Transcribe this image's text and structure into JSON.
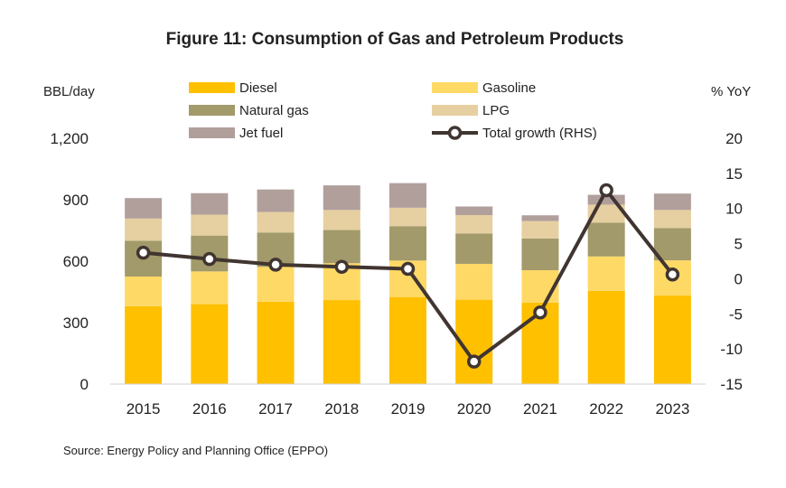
{
  "chart_data": {
    "type": "bar",
    "stacked": true,
    "title": "Figure 11:  Consumption of Gas and Petroleum Products",
    "ylabel_left": "BBL/day",
    "ylabel_right": "% YoY",
    "categories": [
      "2015",
      "2016",
      "2017",
      "2018",
      "2019",
      "2020",
      "2021",
      "2022",
      "2023"
    ],
    "series": [
      {
        "name": "Diesel",
        "color": "#FFC000",
        "values": [
          380,
          390,
          402,
          410,
          425,
          412,
          398,
          455,
          432
        ]
      },
      {
        "name": "Gasoline",
        "color": "#FFD966",
        "values": [
          145,
          160,
          170,
          180,
          178,
          175,
          158,
          168,
          172
        ]
      },
      {
        "name": "Natural gas",
        "color": "#A29A6A",
        "values": [
          175,
          175,
          168,
          162,
          168,
          148,
          155,
          165,
          158
        ]
      },
      {
        "name": "LPG",
        "color": "#E6CFA0",
        "values": [
          108,
          102,
          100,
          98,
          90,
          90,
          85,
          88,
          88
        ]
      },
      {
        "name": "Jet fuel",
        "color": "#B19F9C",
        "values": [
          100,
          105,
          110,
          120,
          120,
          42,
          28,
          48,
          80
        ]
      }
    ],
    "line_series": {
      "name": "Total growth (RHS)",
      "color": "#403530",
      "values": [
        3.7,
        2.8,
        2.0,
        1.7,
        1.4,
        -11.8,
        -4.8,
        12.6,
        0.6
      ]
    },
    "ylim_left": [
      0,
      1200
    ],
    "yticks_left": [
      "0",
      "300",
      "600",
      "900",
      "1,200"
    ],
    "ylim_right": [
      -15,
      20
    ],
    "yticks_right": [
      "-15",
      "-10",
      "-5",
      "0",
      "5",
      "10",
      "15",
      "20"
    ],
    "grid": false,
    "legend_position": "top",
    "source": "Source:  Energy Policy and Planning Office (EPPO)"
  }
}
